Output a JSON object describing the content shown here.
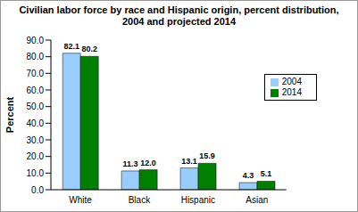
{
  "chart_data": {
    "type": "bar",
    "title": "Civilian labor force by race and Hispanic origin, percent distribution, 2004 and projected 2014",
    "y_label": "Percent",
    "categories": [
      "White",
      "Black",
      "Hispanic",
      "Asian"
    ],
    "series": [
      {
        "name": "2004",
        "color": "#99ccff",
        "values": [
          82.1,
          11.3,
          13.1,
          4.3
        ],
        "value_labels": [
          "82.1",
          "11.3",
          "13.1",
          "4.3"
        ]
      },
      {
        "name": "2014",
        "color": "#008000",
        "values": [
          80.2,
          12.0,
          15.9,
          5.1
        ],
        "value_labels": [
          "80.2",
          "12.0",
          "15.9",
          "5.1"
        ]
      }
    ],
    "ylim": [
      0,
      90
    ],
    "yticks": [
      {
        "value": 0,
        "label": "0.0"
      },
      {
        "value": 10,
        "label": "10.0"
      },
      {
        "value": 20,
        "label": "20.0"
      },
      {
        "value": 30,
        "label": "30.0"
      },
      {
        "value": 40,
        "label": "40.0"
      },
      {
        "value": 50,
        "label": "50.0"
      },
      {
        "value": 60,
        "label": "60.0"
      },
      {
        "value": 70,
        "label": "70.0"
      },
      {
        "value": 80,
        "label": "80.0"
      },
      {
        "value": 90,
        "label": "90.0"
      }
    ],
    "grid": false,
    "legend": "upper right",
    "data_labels": true
  }
}
